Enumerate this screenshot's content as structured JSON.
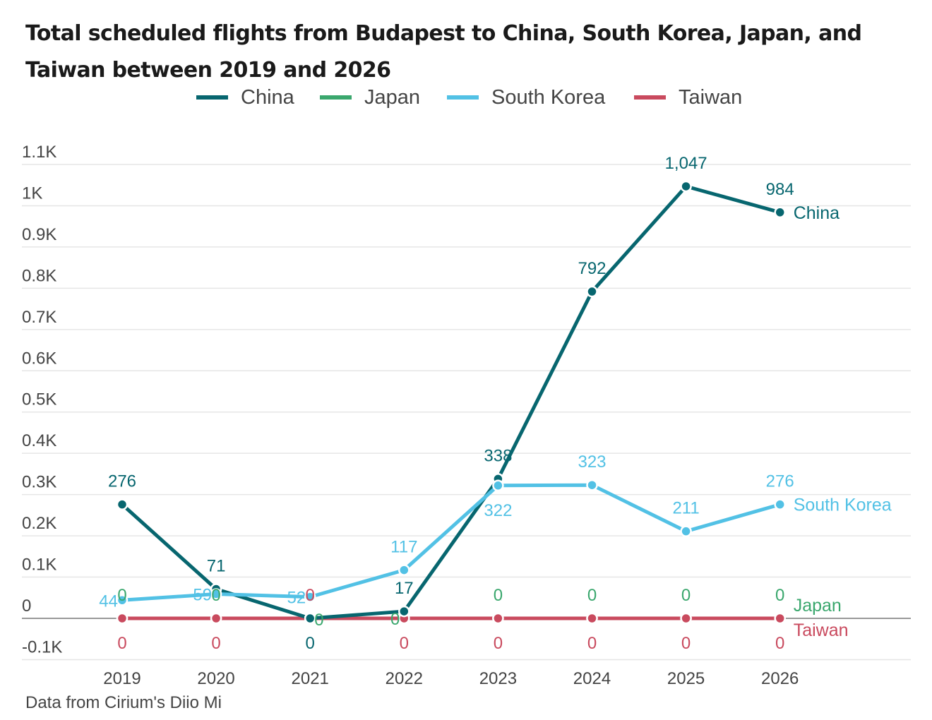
{
  "chart_data": {
    "type": "line",
    "title": "Total scheduled flights from Budapest to China, South Korea, Japan, and Taiwan between 2019 and 2026",
    "xlabel": "",
    "ylabel": "",
    "categories": [
      "2019",
      "2020",
      "2021",
      "2022",
      "2023",
      "2024",
      "2025",
      "2026"
    ],
    "ylim": [
      -100,
      1100
    ],
    "yticks": [
      {
        "value": 1100,
        "label": "1.1K"
      },
      {
        "value": 1000,
        "label": "1K"
      },
      {
        "value": 900,
        "label": "0.9K"
      },
      {
        "value": 800,
        "label": "0.8K"
      },
      {
        "value": 700,
        "label": "0.7K"
      },
      {
        "value": 600,
        "label": "0.6K"
      },
      {
        "value": 500,
        "label": "0.5K"
      },
      {
        "value": 400,
        "label": "0.4K"
      },
      {
        "value": 300,
        "label": "0.3K"
      },
      {
        "value": 200,
        "label": "0.2K"
      },
      {
        "value": 100,
        "label": "0.1K"
      },
      {
        "value": 0,
        "label": "0"
      },
      {
        "value": -100,
        "label": "-0.1K"
      }
    ],
    "grid": true,
    "legend_position": "top-center",
    "series": [
      {
        "name": "China",
        "color": "#07666F",
        "values": [
          276,
          71,
          0,
          17,
          338,
          792,
          1047,
          984
        ],
        "labels": [
          "276",
          "71",
          "0",
          "17",
          "338",
          "792",
          "1,047",
          "984"
        ],
        "label_positions": [
          "above",
          "above",
          "below",
          "above",
          "above",
          "above",
          "above",
          "above"
        ]
      },
      {
        "name": "Japan",
        "color": "#3AA76D",
        "values": [
          0,
          0,
          0,
          0,
          0,
          0,
          0,
          0
        ],
        "labels": [
          "0",
          "0",
          "0",
          "0",
          "0",
          "0",
          "0",
          "0"
        ],
        "label_positions": [
          "above",
          "above",
          "right",
          "left",
          "above",
          "above",
          "above",
          "above"
        ]
      },
      {
        "name": "South Korea",
        "color": "#52C1E5",
        "values": [
          44,
          59,
          52,
          117,
          322,
          323,
          211,
          276
        ],
        "labels": [
          "44",
          "59",
          "52",
          "117",
          "322",
          "323",
          "211",
          "276"
        ],
        "label_positions": [
          "left",
          "left",
          "left",
          "above",
          "below",
          "above",
          "above",
          "above"
        ]
      },
      {
        "name": "Taiwan",
        "color": "#C94A5E",
        "values": [
          0,
          0,
          0,
          0,
          0,
          0,
          0,
          0
        ],
        "labels": [
          "0",
          "0",
          "0",
          "0",
          "0",
          "0",
          "0",
          "0"
        ],
        "label_positions": [
          "below",
          "below",
          "above",
          "below",
          "below",
          "below",
          "below",
          "below"
        ]
      }
    ],
    "end_labels": [
      "China",
      "South Korea",
      "Japan",
      "Taiwan"
    ],
    "source": "Data from Cirium's Diio Mi"
  },
  "legend": [
    {
      "name": "China",
      "color": "#07666F"
    },
    {
      "name": "Japan",
      "color": "#3AA76D"
    },
    {
      "name": "South Korea",
      "color": "#52C1E5"
    },
    {
      "name": "Taiwan",
      "color": "#C94A5E"
    }
  ]
}
